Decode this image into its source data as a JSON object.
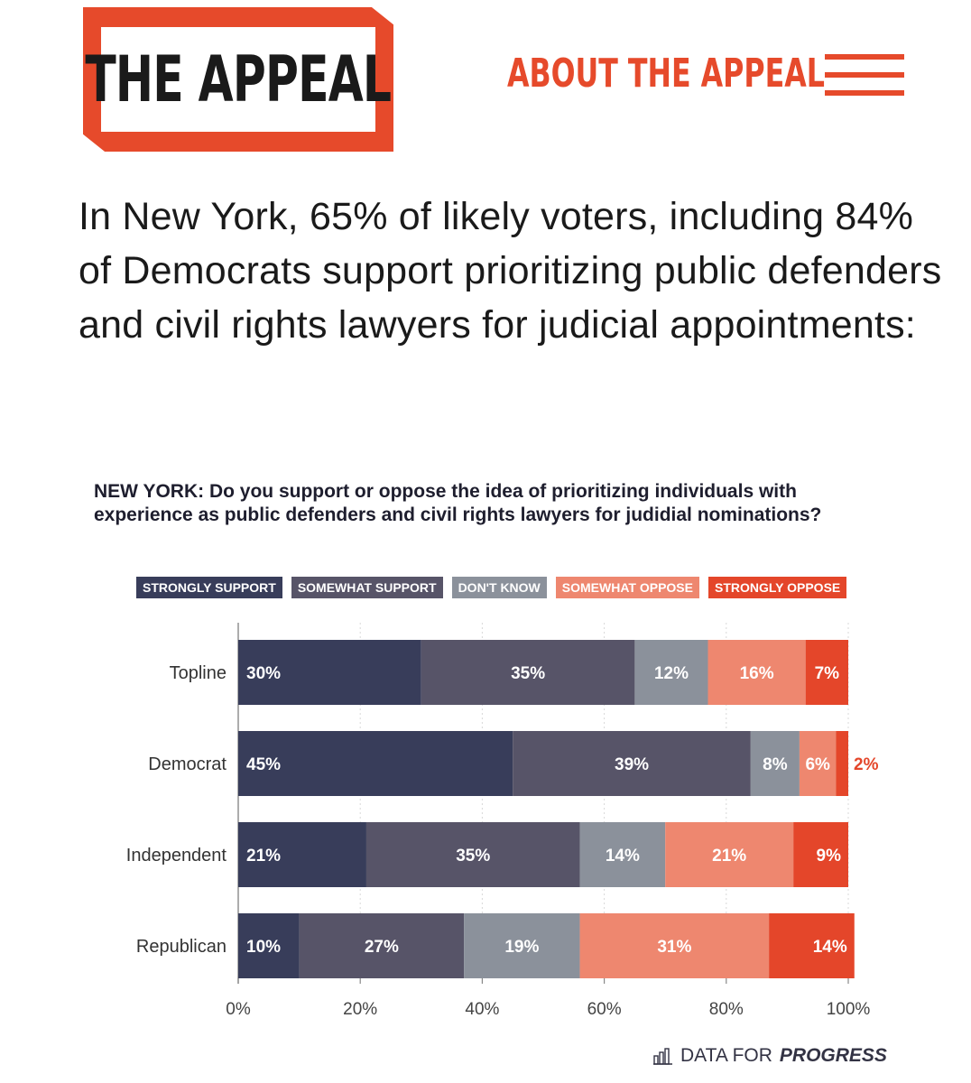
{
  "header": {
    "logo_text": "THE APPEAL",
    "about_label": "ABOUT THE APPEAL",
    "menu_icon": "hamburger-menu-icon",
    "brand_color": "#e64a2b"
  },
  "headline": "In New York, 65% of likely voters, including 84% of Democrats support prioritizing public defenders and civil rights lawyers for judicial appointments:",
  "chart_data": {
    "type": "bar",
    "orientation": "horizontal-stacked",
    "title": "NEW YORK: Do you support or oppose the idea of prioritizing individuals with experience as public defenders and civil rights lawyers for judidial nominations?",
    "categories": [
      "Topline",
      "Democrat",
      "Independent",
      "Republican"
    ],
    "series": [
      {
        "name": "STRONGLY SUPPORT",
        "color": "#383d5a",
        "values": [
          30,
          45,
          21,
          10
        ]
      },
      {
        "name": "SOMEWHAT SUPPORT",
        "color": "#575468",
        "values": [
          35,
          39,
          35,
          27
        ]
      },
      {
        "name": "DON'T KNOW",
        "color": "#8b919b",
        "values": [
          12,
          8,
          14,
          19
        ]
      },
      {
        "name": "SOMEWHAT OPPOSE",
        "color": "#ee876f",
        "values": [
          16,
          6,
          21,
          31
        ]
      },
      {
        "name": "STRONGLY OPPOSE",
        "color": "#e4462a",
        "values": [
          7,
          2,
          9,
          14
        ]
      }
    ],
    "value_suffix": "%",
    "xlim": [
      0,
      100
    ],
    "xticks": [
      0,
      20,
      40,
      60,
      80,
      100
    ],
    "xtick_labels": [
      "0%",
      "20%",
      "40%",
      "60%",
      "80%",
      "100%"
    ],
    "grid": true,
    "legend_position": "top"
  },
  "source": {
    "prefix": "DATA FOR",
    "brand": "PROGRESS",
    "icon": "bar-chart-logo-icon"
  }
}
